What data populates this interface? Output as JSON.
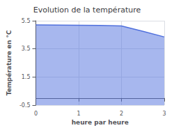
{
  "chart_data": {
    "type": "area",
    "title": "Evolution de la température",
    "xlabel": "heure par heure",
    "ylabel": "Température en °C",
    "x": [
      0,
      0.5,
      1.0,
      1.5,
      2.0,
      2.5,
      3.0
    ],
    "values": [
      5.2,
      5.19,
      5.18,
      5.17,
      5.13,
      4.75,
      4.35
    ],
    "xlim": [
      0,
      3
    ],
    "xticks": [
      0,
      1,
      2,
      3
    ],
    "ylim": [
      -0.5,
      5.5
    ],
    "yticks": [
      -0.5,
      1.5,
      3.5,
      5.5
    ],
    "grid": true
  }
}
